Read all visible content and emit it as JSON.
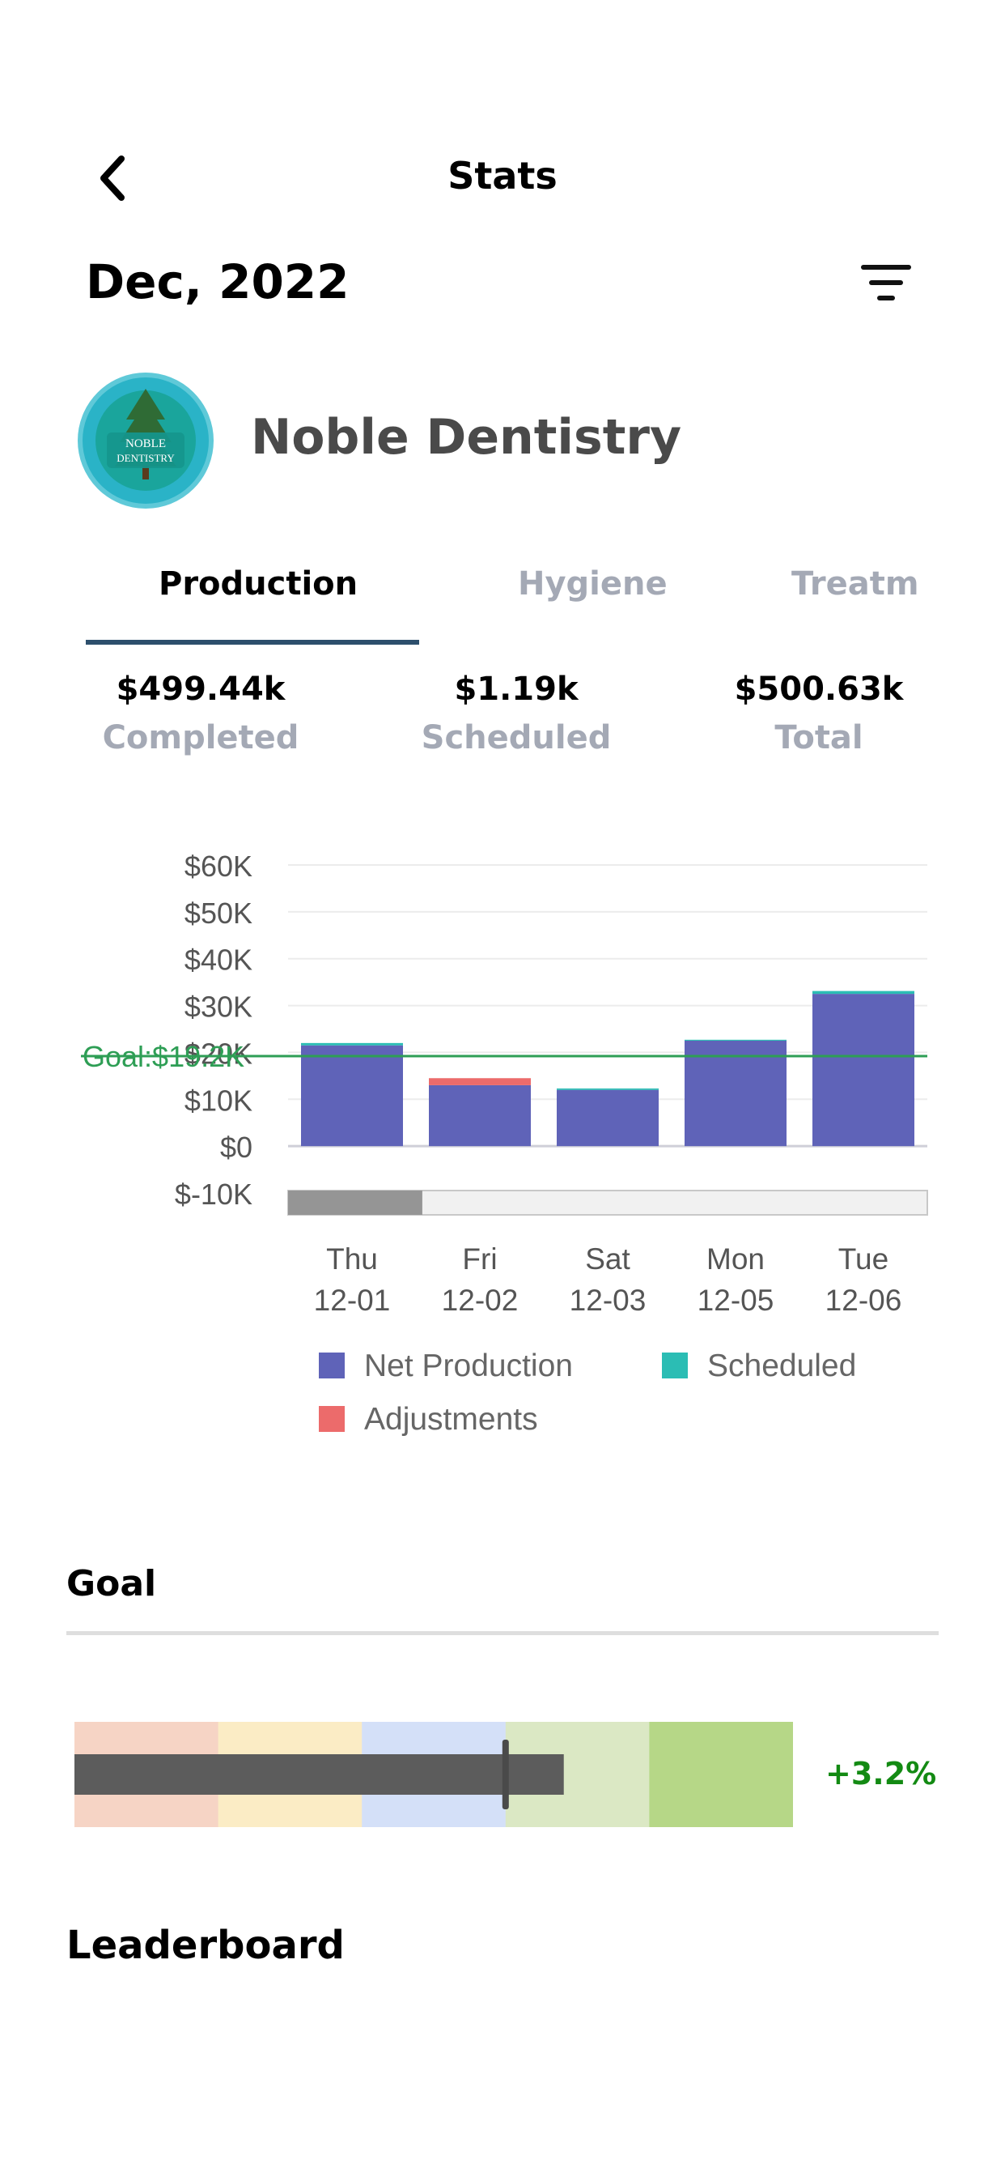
{
  "header": {
    "title": "Stats",
    "month": "Dec, 2022"
  },
  "practice": {
    "name": "Noble Dentistry",
    "logo_text_line1": "NOBLE",
    "logo_text_line2": "DENTISTRY"
  },
  "tabs": [
    {
      "label": "Production",
      "active": true
    },
    {
      "label": "Hygiene",
      "active": false
    },
    {
      "label": "Treatme",
      "active": false
    }
  ],
  "summary": [
    {
      "value": "$499.44k",
      "label": "Completed"
    },
    {
      "value": "$1.19k",
      "label": "Scheduled"
    },
    {
      "value": "$500.63k",
      "label": "Total"
    }
  ],
  "chart_data": {
    "type": "bar",
    "stacked": true,
    "categories": [
      [
        "Thu",
        "12-01"
      ],
      [
        "Fri",
        "12-02"
      ],
      [
        "Sat",
        "12-03"
      ],
      [
        "Mon",
        "12-05"
      ],
      [
        "Tue",
        "12-06"
      ]
    ],
    "series": [
      {
        "name": "Net Production",
        "color": "#5f63b8",
        "values": [
          21500,
          13000,
          12000,
          22500,
          32500
        ]
      },
      {
        "name": "Scheduled",
        "color": "#2bbdb4",
        "values": [
          500,
          0,
          300,
          200,
          600
        ]
      },
      {
        "name": "Adjustments",
        "color": "#ec6b6b",
        "values": [
          0,
          1500,
          0,
          0,
          0
        ]
      }
    ],
    "y_ticks": [
      "$60K",
      "$50K",
      "$40K",
      "$30K",
      "$20K",
      "$10K",
      "$0",
      "$-10K"
    ],
    "ylim": [
      -10000,
      60000
    ],
    "goal": {
      "label": "Goal:$19.2K",
      "value": 19200,
      "color": "#2e9e55"
    },
    "grid": true,
    "legend_position": "bottom",
    "scrollbar_fraction": 0.21
  },
  "goal": {
    "heading": "Goal",
    "percent_label": "+3.2%",
    "bar_value_fraction": 0.681,
    "target_fraction": 0.6,
    "band_colors": [
      "#f6d4c5",
      "#fbecc5",
      "#d4e0f8",
      "#dbe8c4",
      "#b6d787"
    ]
  },
  "leaderboard": {
    "heading": "Leaderboard"
  }
}
